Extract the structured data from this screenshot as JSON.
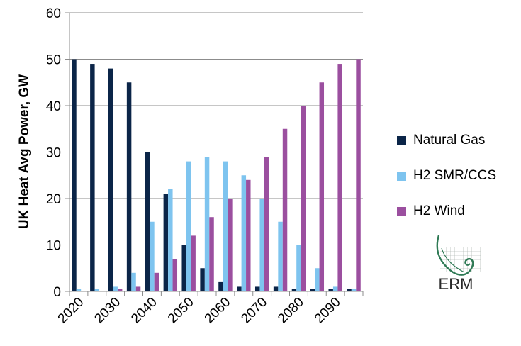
{
  "chart_data": {
    "type": "bar",
    "title": "",
    "xlabel": "",
    "ylabel": "UK Heat Avg Power, GW",
    "ylim": [
      0,
      60
    ],
    "yticks": [
      "0",
      "10",
      "20",
      "30",
      "40",
      "50",
      "60"
    ],
    "grid": true,
    "legend": "right",
    "x_tick_labels": [
      "2020",
      "2030",
      "2040",
      "2050",
      "2060",
      "2070",
      "2080",
      "2090"
    ],
    "years": [
      2020,
      2025,
      2030,
      2035,
      2040,
      2045,
      2050,
      2055,
      2060,
      2065,
      2070,
      2075,
      2080,
      2085,
      2090,
      2095
    ],
    "series": [
      {
        "name": "Natural Gas",
        "color": "#0b2548",
        "values": [
          50,
          49,
          48,
          45,
          30,
          21,
          10,
          5,
          2,
          1,
          1,
          1,
          0.5,
          0.5,
          0.5,
          0.5
        ]
      },
      {
        "name": "H2 SMR/CCS",
        "color": "#7ec4ef",
        "values": [
          0.5,
          0.5,
          1,
          4,
          15,
          22,
          28,
          29,
          28,
          25,
          20,
          15,
          10,
          5,
          1,
          0.5
        ]
      },
      {
        "name": "H2 Wind",
        "color": "#9b4f9f",
        "values": [
          0,
          0,
          0.5,
          1,
          4,
          7,
          12,
          16,
          20,
          24,
          29,
          35,
          40,
          45,
          49,
          50
        ]
      }
    ]
  },
  "logo": {
    "text": "ERM"
  }
}
